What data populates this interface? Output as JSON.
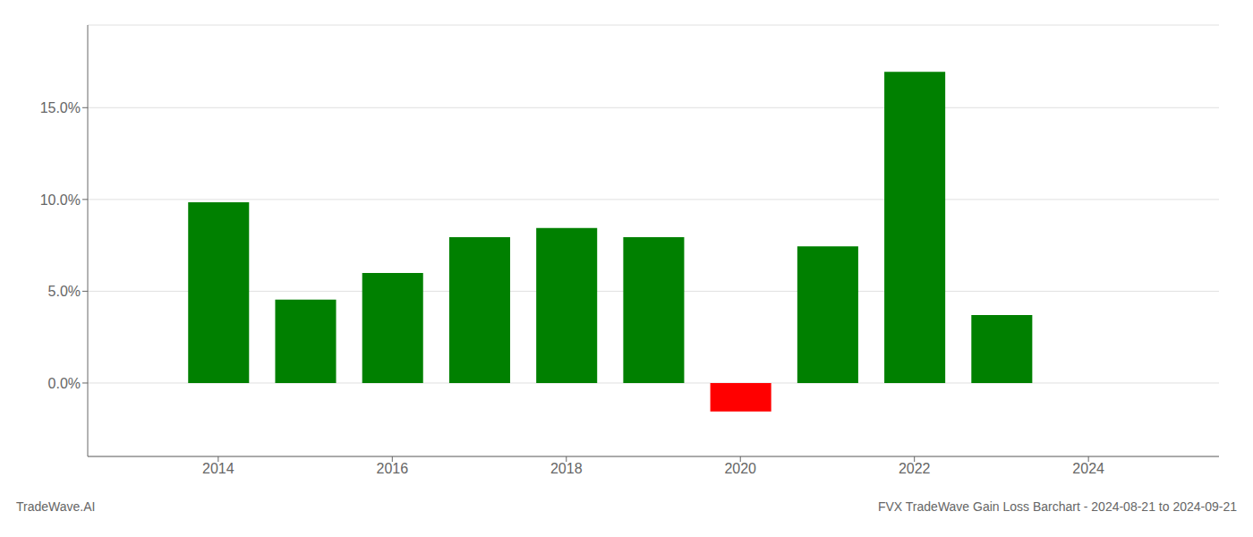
{
  "chart_data": {
    "type": "bar",
    "x": [
      2014,
      2015,
      2016,
      2017,
      2018,
      2019,
      2020,
      2021,
      2022,
      2023
    ],
    "values": [
      0.0985,
      0.0455,
      0.06,
      0.0795,
      0.0845,
      0.0795,
      -0.0155,
      0.0745,
      0.1695,
      0.037
    ],
    "colors": [
      "#008000",
      "#008000",
      "#008000",
      "#008000",
      "#008000",
      "#008000",
      "#ff0000",
      "#008000",
      "#008000",
      "#008000"
    ],
    "xlim": [
      2012.5,
      2025.5
    ],
    "xticks": [
      2014,
      2016,
      2018,
      2020,
      2022,
      2024
    ],
    "ylim": [
      -0.04,
      0.195
    ],
    "yticks": [
      {
        "value": 0.0,
        "label": "0.0%"
      },
      {
        "value": 0.05,
        "label": "5.0%"
      },
      {
        "value": 0.1,
        "label": "10.0%"
      },
      {
        "value": 0.15,
        "label": "15.0%"
      }
    ],
    "grid": true,
    "annotations": [
      "TradeWave.AI",
      "FVX TradeWave Gain Loss Barchart - 2024-08-21 to 2024-09-21"
    ]
  }
}
